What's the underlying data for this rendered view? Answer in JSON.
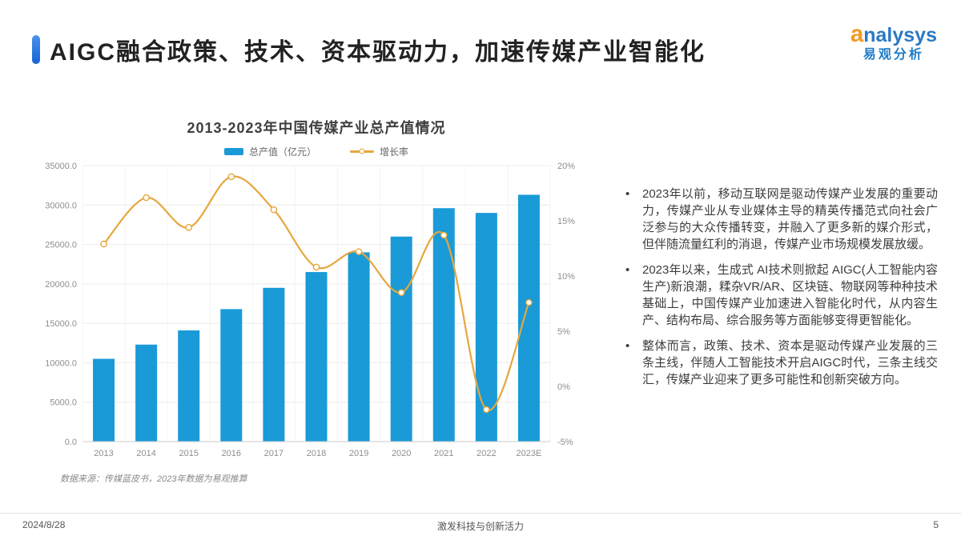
{
  "header": {
    "title": "AIGC融合政策、技术、资本驱动力，加速传媒产业智能化",
    "logo": {
      "brand": "analysys",
      "brand_cn": "易观分析"
    }
  },
  "chart": {
    "title": "2013-2023年中国传媒产业总产值情况"
  },
  "chart_data": {
    "type": "bar",
    "subtype": "bar+line-combo",
    "title": "2013-2023年中国传媒产业总产值情况",
    "categories": [
      "2013",
      "2014",
      "2015",
      "2016",
      "2017",
      "2018",
      "2019",
      "2020",
      "2021",
      "2022",
      "2023E"
    ],
    "series": [
      {
        "name": "总产值（亿元）",
        "type": "bar",
        "axis": "left",
        "color": "#1a9ad7",
        "values": [
          10500,
          12300,
          14100,
          16800,
          19500,
          21500,
          24000,
          26000,
          29600,
          29000,
          31300
        ]
      },
      {
        "name": "增长率",
        "type": "line",
        "axis": "right",
        "color": "#e6a73e",
        "values": [
          12.9,
          17.1,
          14.4,
          19.0,
          16.0,
          10.8,
          12.2,
          8.5,
          13.7,
          -2.1,
          7.6
        ]
      }
    ],
    "left_axis": {
      "min": 0,
      "max": 35000,
      "tick_labels": [
        "0.0",
        "5000.0",
        "10000.0",
        "15000.0",
        "20000.0",
        "25000.0",
        "30000.0",
        "35000.0"
      ]
    },
    "right_axis": {
      "min": -5,
      "max": 20,
      "tick_labels": [
        "-5%",
        "0%",
        "5%",
        "10%",
        "15%",
        "20%"
      ]
    },
    "grid": true,
    "legend_position": "top"
  },
  "bullets": [
    "2023年以前，移动互联网是驱动传媒产业发展的重要动力，传媒产业从专业媒体主导的精英传播范式向社会广泛参与的大众传播转变，并融入了更多新的媒介形式，但伴随流量红利的消退，传媒产业市场规模发展放缓。",
    "2023年以来，生成式 AI技术则掀起 AIGC(人工智能内容生产)新浪潮，糅杂VR/AR、区块链、物联网等种种技术基础上，中国传媒产业加速进入智能化时代，从内容生产、结构布局、综合服务等方面能够变得更智能化。",
    "整体而言，政策、技术、资本是驱动传媒产业发展的三条主线，伴随人工智能技术开启AIGC时代，三条主线交汇，传媒产业迎来了更多可能性和创新突破方向。"
  ],
  "source_note": "数据来源：传媒蓝皮书，2023年数据为易观推算",
  "footer": {
    "date": "2024/8/28",
    "slogan": "激发科技与创新活力",
    "page": "5"
  }
}
